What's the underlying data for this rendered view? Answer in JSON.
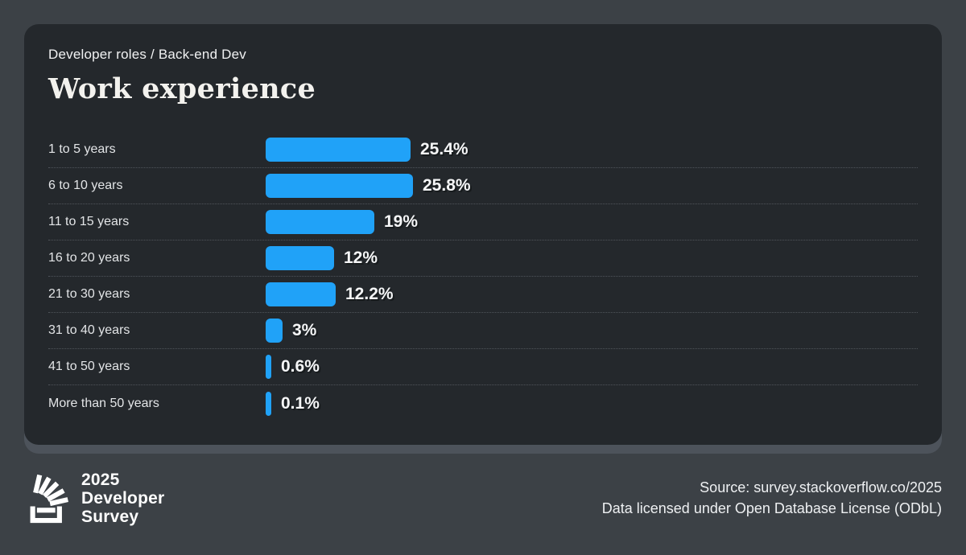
{
  "page": {
    "background": "#3c4146",
    "card_background": "#24282c",
    "accent_blue": "#20a2f8",
    "shadow_color": "#4d535b"
  },
  "header": {
    "breadcrumb": "Developer roles / Back-end Dev",
    "title": "Work experience"
  },
  "chart_data": {
    "type": "bar",
    "orientation": "horizontal",
    "title": "Work experience",
    "unit": "%",
    "bar_color": "#20a2f8",
    "xlim": [
      0,
      26
    ],
    "grid": false,
    "legend": false,
    "categories": [
      "1 to 5 years",
      "6 to 10 years",
      "11 to 15 years",
      "16 to 20 years",
      "21 to 30 years",
      "31 to 40 years",
      "41 to 50 years",
      "More than 50 years"
    ],
    "values": [
      25.4,
      25.8,
      19,
      12,
      12.2,
      3,
      0.6,
      0.1
    ],
    "value_labels": [
      "25.4%",
      "25.8%",
      "19%",
      "12%",
      "12.2%",
      "3%",
      "0.6%",
      "0.1%"
    ]
  },
  "footer": {
    "logo": {
      "icon": "stackoverflow-logo",
      "lines": [
        "2025",
        "Developer",
        "Survey"
      ]
    },
    "source_line1": "Source: survey.stackoverflow.co/2025",
    "source_line2": "Data licensed under Open Database License (ODbL)"
  }
}
